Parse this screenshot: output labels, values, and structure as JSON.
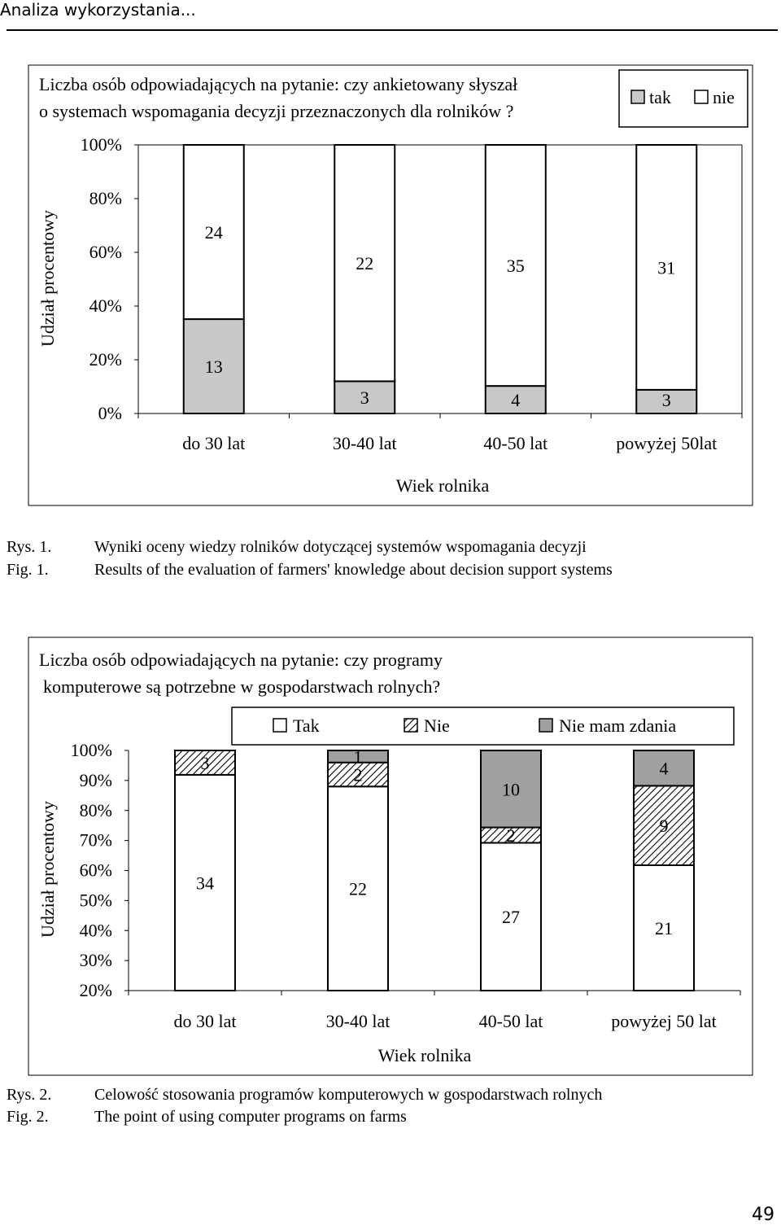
{
  "header": {
    "title": "Analiza wykorzystania..."
  },
  "figure1": {
    "title_line1": "Liczba osób odpowiadających na pytanie: czy ankietowany słyszał",
    "title_line2": "o systemach wspomagania decyzji przeznaczonych dla rolników ?",
    "caption": {
      "rys_label": "Rys. 1.",
      "fig_label": "Fig. 1.",
      "text_pl": "Wyniki oceny wiedzy rolników dotyczącej systemów wspomagania decyzji",
      "text_en": "Results of the evaluation of farmers' knowledge about decision support systems"
    }
  },
  "figure2": {
    "title_line1": "Liczba osób odpowiadających na pytanie: czy programy",
    "title_line2": "komputerowe są potrzebne w gospodarstwach rolnych?",
    "caption": {
      "rys_label": "Rys. 2.",
      "fig_label": "Fig. 2.",
      "text_pl": "Celowość stosowania programów komputerowych w gospodarstwach rolnych",
      "text_en": "The point of using computer programs on farms"
    }
  },
  "page_number": "49",
  "chart_data": [
    {
      "type": "bar",
      "stacked": "percent",
      "xlabel": "Wiek rolnika",
      "ylabel": "Udział procentowy",
      "ylim": [
        0,
        100
      ],
      "y_ticks": [
        "0%",
        "20%",
        "40%",
        "60%",
        "80%",
        "100%"
      ],
      "categories": [
        "do 30 lat",
        "30-40 lat",
        "40-50 lat",
        "powyżej 50lat"
      ],
      "legend_position": "top-right",
      "series": [
        {
          "name": "tak",
          "color": "#c8c8c8",
          "values": [
            13,
            3,
            4,
            3
          ]
        },
        {
          "name": "nie",
          "color": "#ffffff",
          "values": [
            24,
            22,
            35,
            31
          ]
        }
      ]
    },
    {
      "type": "bar",
      "stacked": "percent",
      "xlabel": "Wiek rolnika",
      "ylabel": "Udział procentowy",
      "ylim": [
        20,
        100
      ],
      "y_ticks": [
        "20%",
        "30%",
        "40%",
        "50%",
        "60%",
        "70%",
        "80%",
        "90%",
        "100%"
      ],
      "categories": [
        "do 30 lat",
        "30-40 lat",
        "40-50 lat",
        "powyżej 50 lat"
      ],
      "legend_position": "top",
      "series": [
        {
          "name": "Tak",
          "color": "#ffffff",
          "values": [
            34,
            22,
            27,
            21
          ]
        },
        {
          "name": "Nie",
          "color": "#ffffff",
          "pattern": "hatch",
          "values": [
            3,
            2,
            2,
            9
          ]
        },
        {
          "name": "Nie mam zdania",
          "color": "#a0a0a0",
          "values": [
            0,
            1,
            10,
            4
          ]
        }
      ]
    }
  ]
}
